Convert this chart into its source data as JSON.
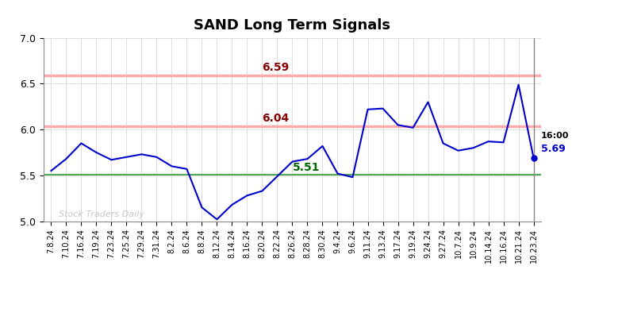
{
  "title": "SAND Long Term Signals",
  "x_labels": [
    "7.8.24",
    "7.10.24",
    "7.16.24",
    "7.19.24",
    "7.23.24",
    "7.25.24",
    "7.29.24",
    "7.31.24",
    "8.2.24",
    "8.6.24",
    "8.8.24",
    "8.12.24",
    "8.14.24",
    "8.16.24",
    "8.20.24",
    "8.22.24",
    "8.26.24",
    "8.28.24",
    "8.30.24",
    "9.4.24",
    "9.6.24",
    "9.11.24",
    "9.13.24",
    "9.17.24",
    "9.19.24",
    "9.24.24",
    "9.27.24",
    "10.7.24",
    "10.9.24",
    "10.14.24",
    "10.16.24",
    "10.21.24",
    "10.23.24"
  ],
  "y_values": [
    5.55,
    5.68,
    5.85,
    5.75,
    5.67,
    5.7,
    5.73,
    5.7,
    5.6,
    5.57,
    5.15,
    5.02,
    5.18,
    5.28,
    5.33,
    5.49,
    5.65,
    5.68,
    5.82,
    5.52,
    5.48,
    6.22,
    6.23,
    6.05,
    6.02,
    6.3,
    5.85,
    5.77,
    5.8,
    5.87,
    5.86,
    6.49,
    5.69
  ],
  "line_color": "#0000cc",
  "hline_green": 5.51,
  "hline_green_color": "#55aa55",
  "hline_red1": 6.04,
  "hline_red1_color": "#ffaaaa",
  "hline_red2": 6.59,
  "hline_red2_color": "#ffaaaa",
  "label_6_59": "6.59",
  "label_6_59_color": "#880000",
  "label_6_04": "6.04",
  "label_6_04_color": "#880000",
  "label_5_51": "5.51",
  "label_5_51_color": "#006600",
  "annotation_time": "16:00",
  "annotation_value": "5.69",
  "annotation_color_time": "#000000",
  "annotation_color_value": "#0000cc",
  "watermark": "Stock Traders Daily",
  "watermark_color": "#bbbbbb",
  "ylim": [
    5.0,
    7.0
  ],
  "yticks": [
    5.0,
    5.5,
    6.0,
    6.5,
    7.0
  ],
  "bg_color": "#ffffff",
  "grid_color": "#dddddd",
  "last_dot_color": "#0000cc",
  "vline_color": "#888888",
  "spine_color": "#888888"
}
